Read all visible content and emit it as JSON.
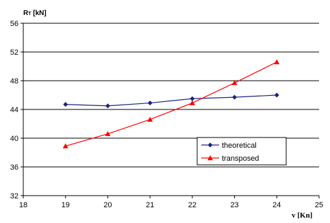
{
  "chart_data": {
    "type": "line",
    "title": "",
    "ylabel_main": "R",
    "ylabel_sub": "T",
    "ylabel_unit": " [kN]",
    "xlabel": "v [Kn]",
    "xlim": [
      18,
      25
    ],
    "ylim": [
      32,
      56
    ],
    "x_ticks": [
      18,
      19,
      20,
      21,
      22,
      23,
      24,
      25
    ],
    "y_ticks": [
      32,
      36,
      40,
      44,
      48,
      52,
      56
    ],
    "grid": true,
    "legend_position": "inside-right",
    "series": [
      {
        "name": "theoretical",
        "color": "#1a237e",
        "marker": "diamond",
        "x": [
          19,
          20,
          21,
          22,
          23,
          24
        ],
        "y": [
          44.7,
          44.5,
          44.9,
          45.5,
          45.7,
          46.0
        ]
      },
      {
        "name": "transposed",
        "color": "#ff0000",
        "marker": "triangle",
        "x": [
          19,
          20,
          21,
          22,
          23,
          24
        ],
        "y": [
          38.9,
          40.6,
          42.6,
          44.9,
          47.7,
          50.6
        ]
      }
    ]
  }
}
